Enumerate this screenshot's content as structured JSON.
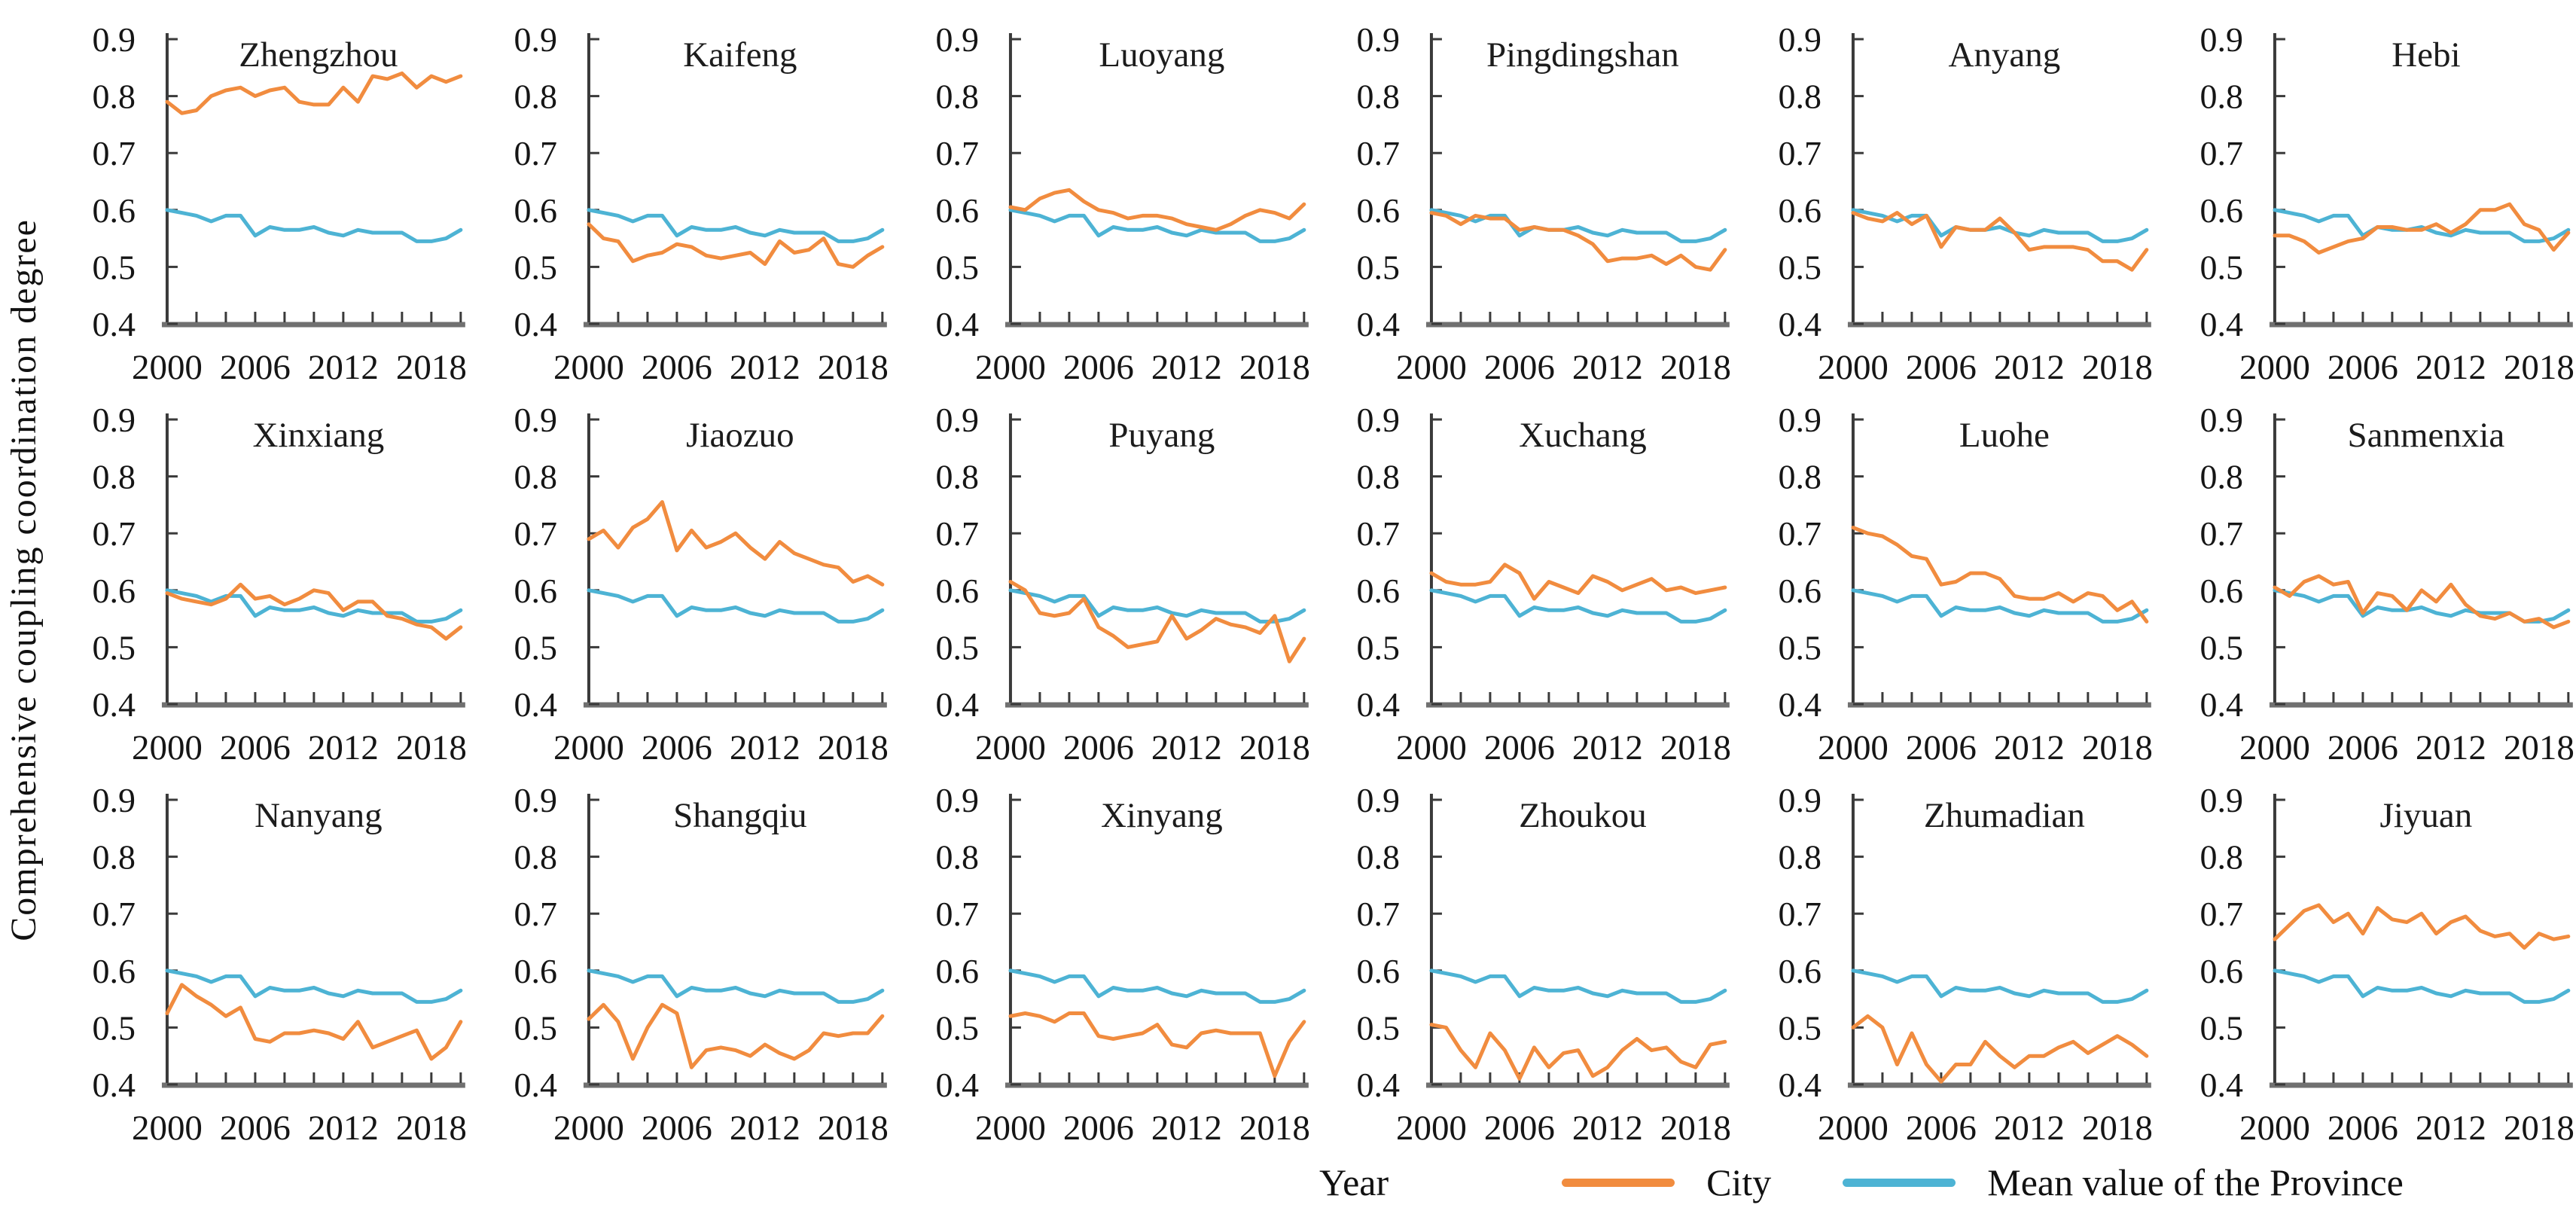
{
  "figure": {
    "ylabel": "Comprehensive coupling coordination degree",
    "xlabel": "Year",
    "background": "#ffffff",
    "text_color": "#151515",
    "axis_color": "#3a3a3a",
    "baseline_color": "#707070"
  },
  "legend": {
    "city": {
      "label": "City",
      "color": "#F18C3F"
    },
    "province": {
      "label": "Mean value of the Province",
      "color": "#4DB3D4"
    }
  },
  "chart_data": {
    "type": "line",
    "x": [
      2000,
      2001,
      2002,
      2003,
      2004,
      2005,
      2006,
      2007,
      2008,
      2009,
      2010,
      2011,
      2012,
      2013,
      2014,
      2015,
      2016,
      2017,
      2018,
      2019,
      2020
    ],
    "xticks": [
      2000,
      2006,
      2012,
      2018
    ],
    "yticks": [
      0.4,
      0.5,
      0.6,
      0.7,
      0.8,
      0.9
    ],
    "ylim": [
      0.4,
      0.9
    ],
    "grid": false,
    "legend_position": "bottom",
    "province_mean_series": {
      "name": "Mean value of the Province",
      "values": [
        0.6,
        0.595,
        0.59,
        0.58,
        0.59,
        0.59,
        0.555,
        0.57,
        0.565,
        0.565,
        0.57,
        0.56,
        0.555,
        0.565,
        0.56,
        0.56,
        0.56,
        0.545,
        0.545,
        0.55,
        0.565
      ]
    },
    "panels": [
      {
        "title": "Zhengzhou",
        "city_series": [
          0.79,
          0.77,
          0.775,
          0.8,
          0.81,
          0.815,
          0.8,
          0.81,
          0.815,
          0.79,
          0.785,
          0.785,
          0.815,
          0.79,
          0.835,
          0.83,
          0.84,
          0.815,
          0.835,
          0.825,
          0.835
        ]
      },
      {
        "title": "Kaifeng",
        "city_series": [
          0.575,
          0.55,
          0.545,
          0.51,
          0.52,
          0.525,
          0.54,
          0.535,
          0.52,
          0.515,
          0.52,
          0.525,
          0.505,
          0.545,
          0.525,
          0.53,
          0.55,
          0.505,
          0.5,
          0.52,
          0.535
        ]
      },
      {
        "title": "Luoyang",
        "city_series": [
          0.605,
          0.6,
          0.62,
          0.63,
          0.635,
          0.615,
          0.6,
          0.595,
          0.585,
          0.59,
          0.59,
          0.585,
          0.575,
          0.57,
          0.565,
          0.575,
          0.59,
          0.6,
          0.595,
          0.585,
          0.61
        ]
      },
      {
        "title": "Pingdingshan",
        "city_series": [
          0.595,
          0.59,
          0.575,
          0.59,
          0.585,
          0.585,
          0.565,
          0.57,
          0.565,
          0.565,
          0.555,
          0.54,
          0.51,
          0.515,
          0.515,
          0.52,
          0.505,
          0.52,
          0.5,
          0.495,
          0.53
        ]
      },
      {
        "title": "Anyang",
        "city_series": [
          0.595,
          0.585,
          0.58,
          0.595,
          0.575,
          0.59,
          0.535,
          0.57,
          0.565,
          0.565,
          0.585,
          0.56,
          0.53,
          0.535,
          0.535,
          0.535,
          0.53,
          0.51,
          0.51,
          0.495,
          0.53
        ]
      },
      {
        "title": "Hebi",
        "city_series": [
          0.555,
          0.555,
          0.545,
          0.525,
          0.535,
          0.545,
          0.55,
          0.57,
          0.57,
          0.565,
          0.565,
          0.575,
          0.56,
          0.575,
          0.6,
          0.6,
          0.61,
          0.575,
          0.565,
          0.53,
          0.56
        ]
      },
      {
        "title": "Xinxiang",
        "city_series": [
          0.595,
          0.585,
          0.58,
          0.575,
          0.585,
          0.61,
          0.585,
          0.59,
          0.575,
          0.585,
          0.6,
          0.595,
          0.565,
          0.58,
          0.58,
          0.555,
          0.55,
          0.54,
          0.535,
          0.515,
          0.535
        ]
      },
      {
        "title": "Jiaozuo",
        "city_series": [
          0.69,
          0.705,
          0.675,
          0.71,
          0.725,
          0.755,
          0.67,
          0.705,
          0.675,
          0.685,
          0.7,
          0.675,
          0.655,
          0.685,
          0.665,
          0.655,
          0.645,
          0.64,
          0.615,
          0.625,
          0.61
        ]
      },
      {
        "title": "Puyang",
        "city_series": [
          0.615,
          0.6,
          0.56,
          0.555,
          0.56,
          0.585,
          0.535,
          0.52,
          0.5,
          0.505,
          0.51,
          0.555,
          0.515,
          0.53,
          0.55,
          0.54,
          0.535,
          0.525,
          0.555,
          0.475,
          0.515
        ]
      },
      {
        "title": "Xuchang",
        "city_series": [
          0.63,
          0.615,
          0.61,
          0.61,
          0.615,
          0.645,
          0.63,
          0.585,
          0.615,
          0.605,
          0.595,
          0.625,
          0.615,
          0.6,
          0.61,
          0.62,
          0.6,
          0.605,
          0.595,
          0.6,
          0.605
        ]
      },
      {
        "title": "Luohe",
        "city_series": [
          0.71,
          0.7,
          0.695,
          0.68,
          0.66,
          0.655,
          0.61,
          0.615,
          0.63,
          0.63,
          0.62,
          0.59,
          0.585,
          0.585,
          0.595,
          0.58,
          0.595,
          0.59,
          0.565,
          0.58,
          0.545
        ]
      },
      {
        "title": "Sanmenxia",
        "city_series": [
          0.605,
          0.59,
          0.615,
          0.625,
          0.61,
          0.615,
          0.56,
          0.595,
          0.59,
          0.565,
          0.6,
          0.58,
          0.61,
          0.575,
          0.555,
          0.55,
          0.56,
          0.545,
          0.55,
          0.535,
          0.545
        ]
      },
      {
        "title": "Nanyang",
        "city_series": [
          0.525,
          0.575,
          0.555,
          0.54,
          0.52,
          0.535,
          0.48,
          0.475,
          0.49,
          0.49,
          0.495,
          0.49,
          0.48,
          0.51,
          0.465,
          0.475,
          0.485,
          0.495,
          0.445,
          0.465,
          0.51
        ]
      },
      {
        "title": "Shangqiu",
        "city_series": [
          0.515,
          0.54,
          0.51,
          0.445,
          0.5,
          0.54,
          0.525,
          0.43,
          0.46,
          0.465,
          0.46,
          0.45,
          0.47,
          0.455,
          0.445,
          0.46,
          0.49,
          0.485,
          0.49,
          0.49,
          0.52
        ]
      },
      {
        "title": "Xinyang",
        "city_series": [
          0.52,
          0.525,
          0.52,
          0.51,
          0.525,
          0.525,
          0.485,
          0.48,
          0.485,
          0.49,
          0.505,
          0.47,
          0.465,
          0.49,
          0.495,
          0.49,
          0.49,
          0.49,
          0.415,
          0.475,
          0.51
        ]
      },
      {
        "title": "Zhoukou",
        "city_series": [
          0.505,
          0.5,
          0.46,
          0.43,
          0.49,
          0.46,
          0.41,
          0.465,
          0.43,
          0.455,
          0.46,
          0.415,
          0.43,
          0.46,
          0.48,
          0.46,
          0.465,
          0.44,
          0.43,
          0.47,
          0.475
        ]
      },
      {
        "title": "Zhumadian",
        "city_series": [
          0.5,
          0.52,
          0.5,
          0.435,
          0.49,
          0.435,
          0.405,
          0.435,
          0.435,
          0.475,
          0.45,
          0.43,
          0.45,
          0.45,
          0.465,
          0.475,
          0.455,
          0.47,
          0.485,
          0.47,
          0.45
        ]
      },
      {
        "title": "Jiyuan",
        "city_series": [
          0.655,
          0.68,
          0.705,
          0.715,
          0.685,
          0.7,
          0.665,
          0.71,
          0.69,
          0.685,
          0.7,
          0.665,
          0.685,
          0.695,
          0.67,
          0.66,
          0.665,
          0.64,
          0.665,
          0.655,
          0.66
        ]
      }
    ]
  }
}
